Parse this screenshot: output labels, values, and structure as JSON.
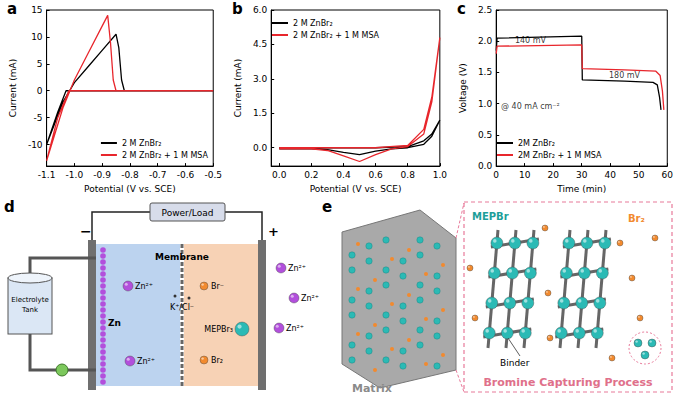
{
  "chart_data": [
    {
      "type": "line",
      "title": "a",
      "xlabel": "Potential (V vs. SCE)",
      "ylabel": "Current (mA)",
      "xlim": [
        -1.1,
        -0.5
      ],
      "xticks": [
        -1.1,
        {
          "value": -1,
          "label": "-1.0"
        },
        -0.9,
        -0.8,
        -0.7,
        -0.6,
        -0.5
      ],
      "ylim": [
        -14,
        15
      ],
      "yticks": [
        -10,
        -5,
        0,
        5,
        10,
        15
      ],
      "grid": false,
      "legend": "lower right",
      "series": [
        {
          "name": "2 M ZnBr₂",
          "color": "#000000",
          "x": [
            -0.5,
            -0.9,
            -1.0,
            -1.03,
            -1.06,
            -1.1,
            -1.07,
            -1.04,
            -1.0,
            -0.95,
            -0.9,
            -0.85,
            -0.84,
            -0.83,
            -0.82,
            -0.5
          ],
          "values": [
            0,
            0,
            0,
            0,
            -4,
            -10,
            -6,
            -2,
            1.5,
            4.5,
            7.5,
            10.5,
            8,
            2,
            0,
            0
          ]
        },
        {
          "name": "2 M ZnBr₂ + 1 M MSA",
          "color": "#e8262c",
          "x": [
            -0.5,
            -0.95,
            -1.0,
            -1.02,
            -1.06,
            -1.1,
            -1.07,
            -1.04,
            -1.0,
            -0.95,
            -0.9,
            -0.88,
            -0.87,
            -0.86,
            -0.85,
            -0.5
          ],
          "values": [
            0,
            0,
            0,
            0,
            -5,
            -13,
            -8,
            -3,
            2,
            7,
            12,
            14,
            9,
            2,
            0,
            0
          ]
        }
      ]
    },
    {
      "type": "line",
      "title": "b",
      "xlabel": "Potential (V vs. SCE)",
      "ylabel": "Current (mA)",
      "xlim": [
        -0.05,
        1
      ],
      "xticks": [
        {
          "value": 0,
          "label": "0.0"
        },
        0.2,
        0.4,
        0.6,
        0.8,
        {
          "value": 1,
          "label": "1.0"
        }
      ],
      "ylim": [
        -0.8,
        6
      ],
      "yticks": [
        {
          "value": 0,
          "label": "0.0"
        },
        1.5,
        {
          "value": 3,
          "label": "3.0"
        },
        4.5,
        {
          "value": 6,
          "label": "6.0"
        }
      ],
      "grid": false,
      "legend": "upper left",
      "series": [
        {
          "name": "2 M ZnBr₂",
          "color": "#000000",
          "x": [
            0,
            0.2,
            0.4,
            0.6,
            0.8,
            0.9,
            0.95,
            1.0,
            0.95,
            0.9,
            0.8,
            0.7,
            0.6,
            0.5,
            0.4,
            0.3,
            0.2,
            0
          ],
          "values": [
            0,
            0,
            0,
            0,
            0.05,
            0.3,
            0.6,
            1.2,
            0.5,
            0.15,
            0,
            -0.05,
            -0.15,
            -0.3,
            -0.2,
            -0.08,
            -0.05,
            -0.05
          ]
        },
        {
          "name": "2 M ZnBr₂ + 1 M MSA",
          "color": "#e8262c",
          "x": [
            0,
            0.2,
            0.4,
            0.6,
            0.8,
            0.9,
            0.95,
            1.0,
            0.95,
            0.9,
            0.8,
            0.7,
            0.6,
            0.5,
            0.4,
            0.3,
            0.2,
            0
          ],
          "values": [
            0,
            0,
            0,
            0,
            0.1,
            0.8,
            2.2,
            4.8,
            2.0,
            0.6,
            0.05,
            -0.05,
            -0.3,
            -0.6,
            -0.35,
            -0.12,
            -0.05,
            -0.05
          ]
        }
      ]
    },
    {
      "type": "line",
      "title": "c",
      "xlabel": "Time (min)",
      "ylabel": "Voltage (V)",
      "xlim": [
        0,
        60
      ],
      "xticks": [
        0,
        10,
        20,
        30,
        40,
        50,
        60
      ],
      "ylim": [
        0,
        2.5
      ],
      "yticks": [
        {
          "value": 0,
          "label": "0.0"
        },
        0.5,
        {
          "value": 1,
          "label": "1.0"
        },
        1.5,
        {
          "value": 2,
          "label": "2.0"
        },
        2.5
      ],
      "grid": false,
      "legend": "lower left",
      "annotations": [
        {
          "text": "140 mV",
          "x": 12,
          "y": 2.005
        },
        {
          "text": "180 mV",
          "x": 45,
          "y": 1.455
        },
        {
          "text": "@ 40 mA cm⁻²",
          "x": 12,
          "y": 0.95
        }
      ],
      "series": [
        {
          "name": "2M ZnBr₂",
          "color": "#000000",
          "x": [
            0,
            0.3,
            30,
            30.2,
            45,
            55,
            56.5,
            57.3,
            57.8
          ],
          "values": [
            1.85,
            2.05,
            2.08,
            1.38,
            1.36,
            1.34,
            1.3,
            1.1,
            0.9
          ]
        },
        {
          "name": "2M ZnBr₂ + 1 M MSA",
          "color": "#e8262c",
          "x": [
            0,
            0.3,
            30,
            30.2,
            45,
            56,
            57.5,
            58.3,
            58.8
          ],
          "values": [
            1.8,
            1.92,
            1.94,
            1.56,
            1.54,
            1.52,
            1.45,
            1.2,
            0.9
          ]
        }
      ]
    }
  ],
  "diagram": {
    "d": {
      "label": "d",
      "power_load": "Power/Load",
      "negative": "−",
      "positive": "+",
      "tank": "Electrolyte Tank",
      "membrane": "Membrane",
      "anolyte": {
        "electrode": "Zn",
        "ions": [
          "Zn²⁺",
          "Zn²⁺"
        ]
      },
      "membrane_ions": "K⁺/Cl⁻",
      "catholyte": {
        "bromide": "Br⁻",
        "complex": "MEPBr₃",
        "bromine": "Br₂"
      }
    },
    "transfer_ions": [
      "Zn²⁺",
      "Zn²⁺",
      "Zn²⁺"
    ],
    "e": {
      "label": "e",
      "matrix": "Matrix",
      "complex": "MEPBr",
      "bromine": "Br₂",
      "binder": "Binder",
      "process": "Bromine Capturing Process"
    }
  }
}
